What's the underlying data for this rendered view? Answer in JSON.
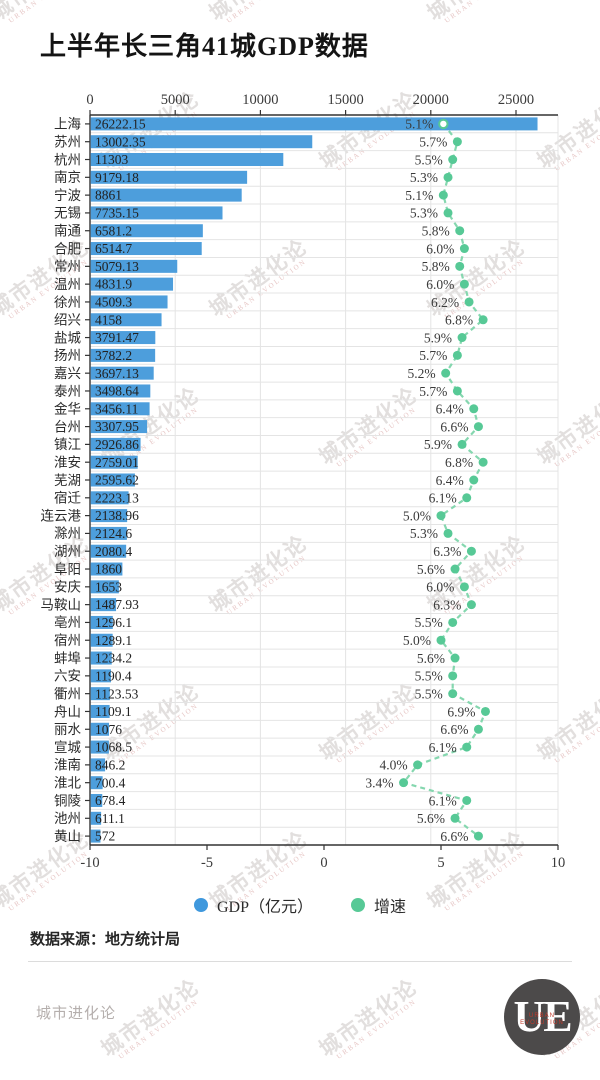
{
  "title": "上半年长三角41城GDP数据",
  "watermark": {
    "cn": "城市进化论",
    "en": "URBAN EVOLUTION"
  },
  "legend": {
    "gdp_label": "GDP（亿元）",
    "growth_label": "增速"
  },
  "source": "数据来源：地方统计局",
  "footer": {
    "brand": "城市进化论",
    "logo_text": "UE",
    "logo_sub_line1": "URBAN",
    "logo_sub_line2": "EVOLUTION"
  },
  "colors": {
    "bar": "#4d9edc",
    "dot": "#57c996",
    "line": "#85d7af",
    "grid": "#e4e4e4",
    "spine": "#333333",
    "label": "#2b2b2b",
    "tick_label": "#3a3a3a"
  },
  "chart_data": {
    "type": "bar",
    "orientation": "horizontal",
    "title": "上半年长三角41城GDP数据",
    "categories": [
      "上海",
      "苏州",
      "杭州",
      "南京",
      "宁波",
      "无锡",
      "南通",
      "合肥",
      "常州",
      "温州",
      "徐州",
      "绍兴",
      "盐城",
      "扬州",
      "嘉兴",
      "泰州",
      "金华",
      "台州",
      "镇江",
      "淮安",
      "芜湖",
      "宿迁",
      "连云港",
      "滁州",
      "湖州",
      "阜阳",
      "安庆",
      "马鞍山",
      "亳州",
      "宿州",
      "蚌埠",
      "六安",
      "衢州",
      "舟山",
      "丽水",
      "宣城",
      "淮南",
      "淮北",
      "铜陵",
      "池州",
      "黄山"
    ],
    "series": [
      {
        "name": "GDP（亿元）",
        "type": "bar",
        "axis": "top",
        "color": "#4d9edc",
        "values": [
          26222.15,
          13002.35,
          11303,
          9179.18,
          8861,
          7735.15,
          6581.2,
          6514.7,
          5079.13,
          4831.9,
          4509.3,
          4158,
          3791.47,
          3782.2,
          3697.13,
          3498.64,
          3456.11,
          3307.95,
          2926.86,
          2759.01,
          2595.62,
          2223.13,
          2138.96,
          2124.6,
          2080.4,
          1860,
          1653,
          1487.93,
          1296.1,
          1289.1,
          1234.2,
          1190.4,
          1123.53,
          1109.1,
          1076,
          1068.5,
          846.2,
          700.4,
          678.4,
          611.1,
          572
        ],
        "value_labels": [
          "26222.15",
          "13002.35",
          "11303",
          "9179.18",
          "8861",
          "7735.15",
          "6581.2",
          "6514.7",
          "5079.13",
          "4831.9",
          "4509.3",
          "4158",
          "3791.47",
          "3782.2",
          "3697.13",
          "3498.64",
          "3456.11",
          "3307.95",
          "2926.86",
          "2759.01",
          "2595.62",
          "2223.13",
          "2138.96",
          "2124.6",
          "2080.4",
          "1860",
          "1653",
          "1487.93",
          "1296.1",
          "1289.1",
          "1234.2",
          "1190.4",
          "1123.53",
          "1109.1",
          "1076",
          "1068.5",
          "846.2",
          "700.4",
          "678.4",
          "611.1",
          "572"
        ]
      },
      {
        "name": "增速",
        "type": "line",
        "axis": "bottom",
        "unit": "%",
        "color": "#57c996",
        "line_color": "#85d7af",
        "line_style": "dashed",
        "first_marker": "open",
        "values": [
          5.1,
          5.7,
          5.5,
          5.3,
          5.1,
          5.3,
          5.8,
          6.0,
          5.8,
          6.0,
          6.2,
          6.8,
          5.9,
          5.7,
          5.2,
          5.7,
          6.4,
          6.6,
          5.9,
          6.8,
          6.4,
          6.1,
          5.0,
          5.3,
          6.3,
          5.6,
          6.0,
          6.3,
          5.5,
          5.0,
          5.6,
          5.5,
          5.5,
          6.9,
          6.6,
          6.1,
          4.0,
          3.4,
          6.1,
          5.6,
          6.6
        ]
      }
    ],
    "top_axis": {
      "ticks": [
        0,
        5000,
        10000,
        15000,
        20000,
        25000
      ],
      "range": [
        0,
        27465
      ]
    },
    "bottom_axis": {
      "ticks": [
        -10,
        -5,
        0,
        5,
        10
      ],
      "range": [
        -10,
        10
      ]
    },
    "grid": true,
    "legend_position": "bottom"
  }
}
